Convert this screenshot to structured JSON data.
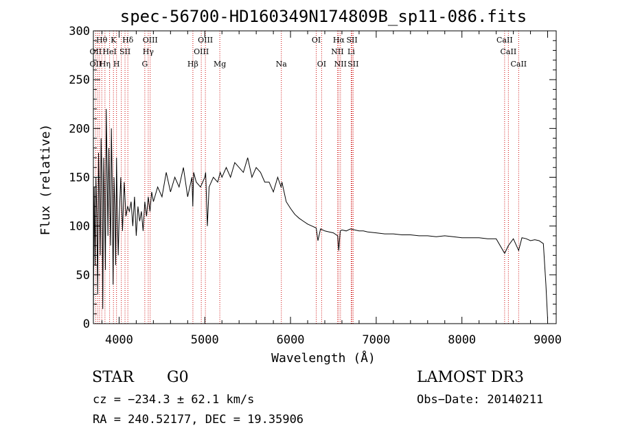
{
  "chart_data": {
    "type": "line",
    "title": "spec-56700-HD160349N174809B_sp11-086.fits",
    "xlabel": "Wavelength (Å)",
    "ylabel": "Flux (relative)",
    "xlim": [
      3700,
      9100
    ],
    "ylim": [
      0,
      300
    ],
    "xticks": [
      4000,
      5000,
      6000,
      7000,
      8000,
      9000
    ],
    "yticks": [
      0,
      50,
      100,
      150,
      200,
      250,
      300
    ],
    "grid": false,
    "series": [
      {
        "name": "flux",
        "color": "#000000",
        "x": [
          3700,
          3710,
          3720,
          3730,
          3740,
          3750,
          3760,
          3770,
          3780,
          3790,
          3800,
          3810,
          3820,
          3830,
          3840,
          3850,
          3860,
          3870,
          3880,
          3890,
          3900,
          3910,
          3920,
          3930,
          3940,
          3950,
          3960,
          3970,
          3980,
          3990,
          4000,
          4020,
          4040,
          4060,
          4080,
          4100,
          4120,
          4140,
          4160,
          4180,
          4200,
          4220,
          4240,
          4260,
          4280,
          4300,
          4320,
          4340,
          4360,
          4380,
          4400,
          4450,
          4500,
          4550,
          4600,
          4650,
          4700,
          4750,
          4800,
          4850,
          4860,
          4870,
          4900,
          4950,
          5000,
          5010,
          5030,
          5050,
          5100,
          5150,
          5180,
          5200,
          5250,
          5300,
          5350,
          5400,
          5450,
          5500,
          5550,
          5600,
          5650,
          5700,
          5750,
          5800,
          5850,
          5890,
          5900,
          5950,
          6000,
          6050,
          6100,
          6150,
          6200,
          6250,
          6300,
          6320,
          6350,
          6400,
          6450,
          6500,
          6550,
          6563,
          6580,
          6600,
          6650,
          6700,
          6750,
          6800,
          6850,
          6900,
          7000,
          7100,
          7200,
          7300,
          7400,
          7500,
          7600,
          7700,
          7800,
          7900,
          8000,
          8100,
          8200,
          8300,
          8400,
          8498,
          8542,
          8600,
          8662,
          8700,
          8750,
          8800,
          8850,
          8900,
          8950,
          8980,
          9000
        ],
        "y": [
          5,
          140,
          60,
          150,
          110,
          30,
          175,
          130,
          70,
          190,
          150,
          15,
          170,
          120,
          55,
          220,
          160,
          90,
          180,
          130,
          80,
          200,
          140,
          40,
          150,
          120,
          60,
          170,
          110,
          70,
          105,
          150,
          95,
          145,
          110,
          120,
          115,
          125,
          100,
          130,
          90,
          120,
          105,
          115,
          95,
          125,
          110,
          130,
          115,
          135,
          125,
          140,
          130,
          155,
          135,
          150,
          140,
          160,
          130,
          150,
          120,
          155,
          145,
          140,
          150,
          155,
          100,
          140,
          150,
          145,
          155,
          150,
          160,
          150,
          165,
          160,
          155,
          170,
          150,
          160,
          155,
          145,
          145,
          135,
          150,
          140,
          145,
          125,
          118,
          112,
          108,
          105,
          102,
          100,
          98,
          85,
          97,
          95,
          94,
          93,
          90,
          75,
          95,
          96,
          95,
          97,
          96,
          95,
          95,
          94,
          93,
          92,
          92,
          91,
          91,
          90,
          90,
          89,
          90,
          89,
          88,
          88,
          88,
          87,
          87,
          72,
          80,
          87,
          75,
          88,
          87,
          85,
          86,
          85,
          82,
          40,
          5
        ],
        "line_wavelengths": [
          3727,
          3750,
          3771,
          3798,
          3835,
          3889,
          3934,
          3970,
          4026,
          4069,
          4102,
          4300,
          4340,
          4363,
          4861,
          4959,
          5007,
          5175,
          5893,
          6300,
          6363,
          6548,
          6563,
          6583,
          6708,
          6717,
          6731,
          8498,
          8542,
          8662
        ],
        "line_labels": [
          {
            "text": "Hθ",
            "wl": 3797,
            "row": 1
          },
          {
            "text": "K",
            "wl": 3934,
            "row": 1
          },
          {
            "text": "Hδ",
            "wl": 4102,
            "row": 1
          },
          {
            "text": "OIII",
            "wl": 4363,
            "row": 1
          },
          {
            "text": "OIII",
            "wl": 5007,
            "row": 1
          },
          {
            "text": "OI",
            "wl": 6300,
            "row": 1
          },
          {
            "text": "Hα",
            "wl": 6563,
            "row": 1
          },
          {
            "text": "SII",
            "wl": 6717,
            "row": 1
          },
          {
            "text": "CaII",
            "wl": 8498,
            "row": 1
          },
          {
            "text": "OII",
            "wl": 3727,
            "row": 2
          },
          {
            "text": "HeI",
            "wl": 3889,
            "row": 2
          },
          {
            "text": "SII",
            "wl": 4069,
            "row": 2
          },
          {
            "text": "Hγ",
            "wl": 4340,
            "row": 2
          },
          {
            "text": "OIII",
            "wl": 4959,
            "row": 2
          },
          {
            "text": "NII",
            "wl": 6548,
            "row": 2
          },
          {
            "text": "Li",
            "wl": 6708,
            "row": 2
          },
          {
            "text": "CaII",
            "wl": 8542,
            "row": 2
          },
          {
            "text": "OII",
            "wl": 3727,
            "row": 3
          },
          {
            "text": "Hη",
            "wl": 3835,
            "row": 3
          },
          {
            "text": "H",
            "wl": 3970,
            "row": 3
          },
          {
            "text": "G",
            "wl": 4300,
            "row": 3
          },
          {
            "text": "Hβ",
            "wl": 4861,
            "row": 3
          },
          {
            "text": "Mg",
            "wl": 5175,
            "row": 3
          },
          {
            "text": "Na",
            "wl": 5893,
            "row": 3
          },
          {
            "text": "OI",
            "wl": 6363,
            "row": 3
          },
          {
            "text": "NII",
            "wl": 6583,
            "row": 3
          },
          {
            "text": "SII",
            "wl": 6731,
            "row": 3
          },
          {
            "text": "CaII",
            "wl": 8662,
            "row": 3
          }
        ]
      }
    ]
  },
  "info": {
    "object_class": "STAR",
    "subclass": "G0",
    "survey": "LAMOST DR3",
    "cz": "cz = −234.3 ± 62.1 km/s",
    "obs_date": "Obs−Date: 20140211",
    "radec": "RA = 240.52177, DEC =  19.35906"
  },
  "colors": {
    "line_marker": "#cc0000",
    "spectrum": "#000000"
  }
}
